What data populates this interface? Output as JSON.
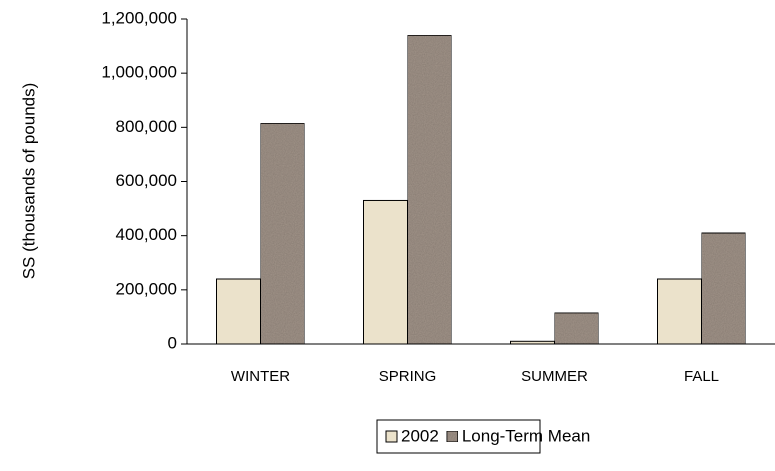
{
  "chart_data": {
    "type": "bar",
    "y_label": "SS (thousands of pounds)",
    "categories": [
      "WINTER",
      "SPRING",
      "SUMMER",
      "FALL"
    ],
    "series": [
      {
        "name": "2002",
        "color": "#ebe2cb",
        "values": [
          240000,
          530000,
          10000,
          240000
        ]
      },
      {
        "name": "Long-Term Mean",
        "color": "#a3958a",
        "values": [
          815000,
          1140000,
          115000,
          410000
        ]
      }
    ],
    "ylim": [
      0,
      1200000
    ],
    "yticks": [
      0,
      {
        "value": 200000,
        "label": "200,000"
      },
      {
        "value": 400000,
        "label": "400,000"
      },
      {
        "value": 600000,
        "label": "600,000"
      },
      {
        "value": 800000,
        "label": "800,000"
      },
      {
        "value": 1000000,
        "label": "1,000,000"
      },
      {
        "value": 1200000,
        "label": "1,200,000"
      }
    ],
    "legend": "bottom"
  }
}
